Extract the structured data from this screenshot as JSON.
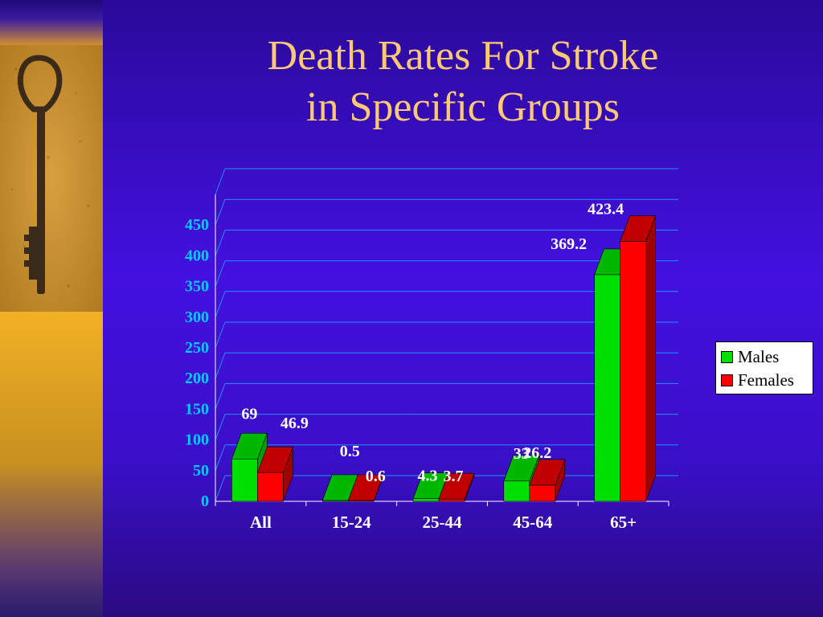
{
  "slide": {
    "title_line1": "Death Rates For Stroke",
    "title_line2": "in Specific Groups"
  },
  "colors": {
    "males_front": "#00e000",
    "males_top": "#00b800",
    "females_front": "#ff0000",
    "females_top": "#c00000",
    "females_side": "#a00000",
    "gridline": "#2090ff",
    "tick_text": "#00ccff",
    "title": "#ffc875"
  },
  "chart_data": {
    "type": "bar",
    "title": "Death Rates For Stroke in Specific Groups",
    "categories": [
      "All",
      "15-24",
      "25-44",
      "45-64",
      "65+"
    ],
    "series": [
      {
        "name": "Males",
        "values": [
          69,
          0.5,
          4.3,
          33,
          369.2
        ],
        "labels": [
          "69",
          "0.5",
          "4.3",
          "33",
          "369.2"
        ]
      },
      {
        "name": "Females",
        "values": [
          46.9,
          0.6,
          3.7,
          26.2,
          423.4
        ],
        "labels": [
          "46.9",
          "0.6",
          "3.7",
          "26.2",
          "423.4"
        ]
      }
    ],
    "y_ticks": [
      "0",
      "50",
      "100",
      "150",
      "200",
      "250",
      "300",
      "350",
      "400",
      "450"
    ],
    "ylim": [
      0,
      500
    ],
    "grid": true,
    "legend_position": "right",
    "three_d": true
  }
}
